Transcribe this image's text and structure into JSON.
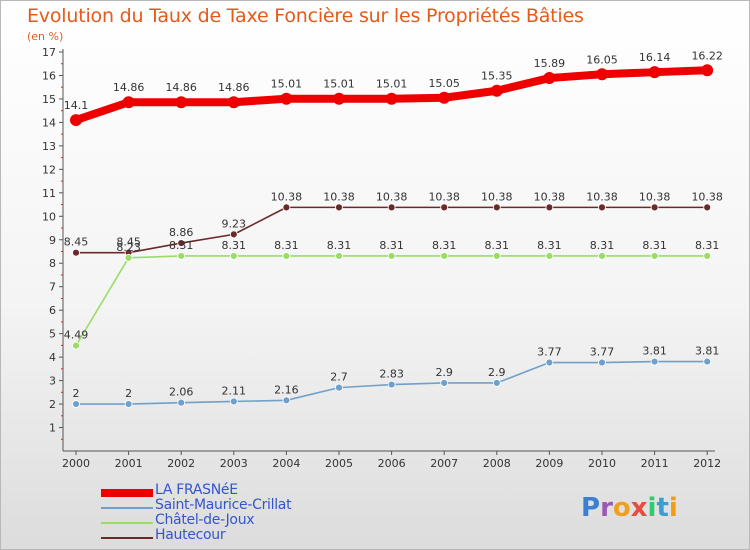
{
  "title": "Evolution du Taux de Taxe Foncière sur les Propriétés Bâties",
  "unit_label": "(en %)",
  "logo": {
    "text": "Proxiti",
    "letters": [
      {
        "ch": "P",
        "color": "#3a7fd0"
      },
      {
        "ch": "r",
        "color": "#9b59b6"
      },
      {
        "ch": "o",
        "color": "#f0a020"
      },
      {
        "ch": "x",
        "color": "#e74c3c"
      },
      {
        "ch": "i",
        "color": "#2ecc71"
      },
      {
        "ch": "t",
        "color": "#3a9fd0"
      },
      {
        "ch": "i",
        "color": "#f39c12"
      }
    ]
  },
  "chart_data": {
    "type": "line",
    "title": "Evolution du Taux de Taxe Foncière sur les Propriétés Bâties",
    "ylabel": "(en %)",
    "x": [
      "2000",
      "2001",
      "2002",
      "2003",
      "2004",
      "2005",
      "2006",
      "2007",
      "2008",
      "2009",
      "2010",
      "2011",
      "2012"
    ],
    "ylim": [
      0,
      17
    ],
    "yticks": [
      1,
      2,
      3,
      4,
      5,
      6,
      7,
      8,
      9,
      10,
      11,
      12,
      13,
      14,
      15,
      16,
      17
    ],
    "grid": false,
    "legend_position": "bottom-left",
    "series": [
      {
        "name": "LA FRASNéE",
        "color": "#ee0000",
        "width": "thick",
        "values": [
          14.1,
          14.86,
          14.86,
          14.86,
          15.01,
          15.01,
          15.01,
          15.05,
          15.35,
          15.89,
          16.05,
          16.14,
          16.22
        ],
        "labels": [
          "14.1",
          "14.86",
          "14.86",
          "14.86",
          "15.01",
          "15.01",
          "15.01",
          "15.05",
          "15.35",
          "15.89",
          "16.05",
          "16.14",
          "16.22"
        ]
      },
      {
        "name": "Saint-Maurice-Crillat",
        "color": "#6fa0cc",
        "width": "thin",
        "values": [
          2,
          2,
          2.06,
          2.11,
          2.16,
          2.7,
          2.83,
          2.9,
          2.9,
          3.77,
          3.77,
          3.81,
          3.81
        ],
        "labels": [
          "2",
          "2",
          "2.06",
          "2.11",
          "2.16",
          "2.7",
          "2.83",
          "2.9",
          "2.9",
          "3.77",
          "3.77",
          "3.81",
          "3.81"
        ]
      },
      {
        "name": "Châtel-de-Joux",
        "color": "#99dd66",
        "width": "thin",
        "values": [
          4.49,
          8.23,
          8.31,
          8.31,
          8.31,
          8.31,
          8.31,
          8.31,
          8.31,
          8.31,
          8.31,
          8.31,
          8.31
        ],
        "labels": [
          "4.49",
          "8.23",
          "8.31",
          "8.31",
          "8.31",
          "8.31",
          "8.31",
          "8.31",
          "8.31",
          "8.31",
          "8.31",
          "8.31",
          "8.31"
        ]
      },
      {
        "name": "Hautecour",
        "color": "#6b2a2a",
        "width": "thin",
        "values": [
          8.45,
          8.45,
          8.86,
          9.23,
          10.38,
          10.38,
          10.38,
          10.38,
          10.38,
          10.38,
          10.38,
          10.38,
          10.38
        ],
        "labels": [
          "8.45",
          "8.45",
          "8.86",
          "9.23",
          "10.38",
          "10.38",
          "10.38",
          "10.38",
          "10.38",
          "10.38",
          "10.38",
          "10.38",
          "10.38"
        ]
      }
    ]
  }
}
